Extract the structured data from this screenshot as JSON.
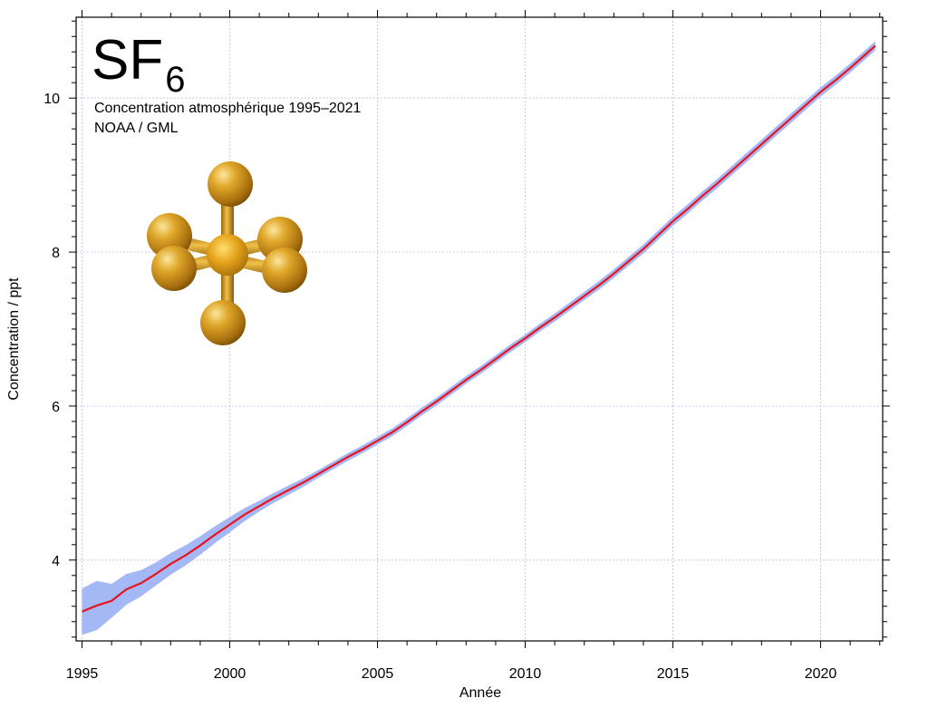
{
  "chart_data": {
    "type": "line",
    "title_main": "SF",
    "title_subscript": "6",
    "subtitle": "Concentration atmosphérique 1995–2021",
    "source": "NOAA / GML",
    "xlabel": "Année",
    "ylabel": "Concentration / ppt",
    "xlim": [
      1994.8,
      2022.1
    ],
    "ylim": [
      2.95,
      11.05
    ],
    "x_ticks": [
      1995,
      2000,
      2005,
      2010,
      2015,
      2020
    ],
    "x_tick_labels": [
      "1995",
      "2000",
      "2005",
      "2010",
      "2015",
      "2020"
    ],
    "y_ticks": [
      4,
      6,
      8,
      10
    ],
    "y_tick_labels": [
      "4",
      "6",
      "8",
      "10"
    ],
    "grid": true,
    "colors": {
      "line": "#e8141e",
      "band": "#a3b8f5",
      "grid": "#c8c8f0",
      "molecule": "#d49a1c"
    },
    "series": [
      {
        "kind": "line",
        "x": [
          1995.0,
          1995.5,
          1996.0,
          1996.5,
          1997.0,
          1997.5,
          1998.0,
          1998.5,
          1999.0,
          1999.5,
          2000.0,
          2000.5,
          2001.0,
          2001.5,
          2002.0,
          2002.5,
          2003.0,
          2003.5,
          2004.0,
          2004.5,
          2005.0,
          2005.5,
          2006.0,
          2006.5,
          2007.0,
          2007.5,
          2008.0,
          2008.5,
          2009.0,
          2009.5,
          2010.0,
          2010.5,
          2011.0,
          2011.5,
          2012.0,
          2012.5,
          2013.0,
          2013.5,
          2014.0,
          2014.5,
          2015.0,
          2015.5,
          2016.0,
          2016.5,
          2017.0,
          2017.5,
          2018.0,
          2018.5,
          2019.0,
          2019.5,
          2020.0,
          2020.5,
          2021.0,
          2021.5,
          2021.85
        ],
        "y": [
          3.33,
          3.41,
          3.47,
          3.62,
          3.7,
          3.82,
          3.95,
          4.06,
          4.19,
          4.33,
          4.46,
          4.59,
          4.7,
          4.81,
          4.91,
          5.01,
          5.12,
          5.23,
          5.34,
          5.44,
          5.55,
          5.66,
          5.79,
          5.93,
          6.06,
          6.2,
          6.34,
          6.47,
          6.61,
          6.75,
          6.88,
          7.02,
          7.15,
          7.29,
          7.43,
          7.57,
          7.72,
          7.88,
          8.04,
          8.22,
          8.4,
          8.56,
          8.73,
          8.89,
          9.06,
          9.23,
          9.4,
          9.57,
          9.74,
          9.91,
          10.08,
          10.23,
          10.39,
          10.56,
          10.68
        ]
      },
      {
        "kind": "uncertainty-band",
        "x": [
          1995.0,
          1995.25,
          1995.5,
          1995.75,
          1996.0,
          1996.5,
          1997.0,
          1997.5,
          1998.0,
          1998.5,
          1999.0,
          1999.5,
          2000.0,
          2001.0,
          2002.0,
          2003.0,
          2005.0,
          2010.0,
          2015.0,
          2020.0,
          2021.85
        ],
        "half_width": [
          0.3,
          0.38,
          0.32,
          0.36,
          0.22,
          0.2,
          0.17,
          0.15,
          0.14,
          0.13,
          0.12,
          0.11,
          0.1,
          0.07,
          0.06,
          0.05,
          0.05,
          0.05,
          0.06,
          0.06,
          0.06
        ]
      }
    ]
  }
}
